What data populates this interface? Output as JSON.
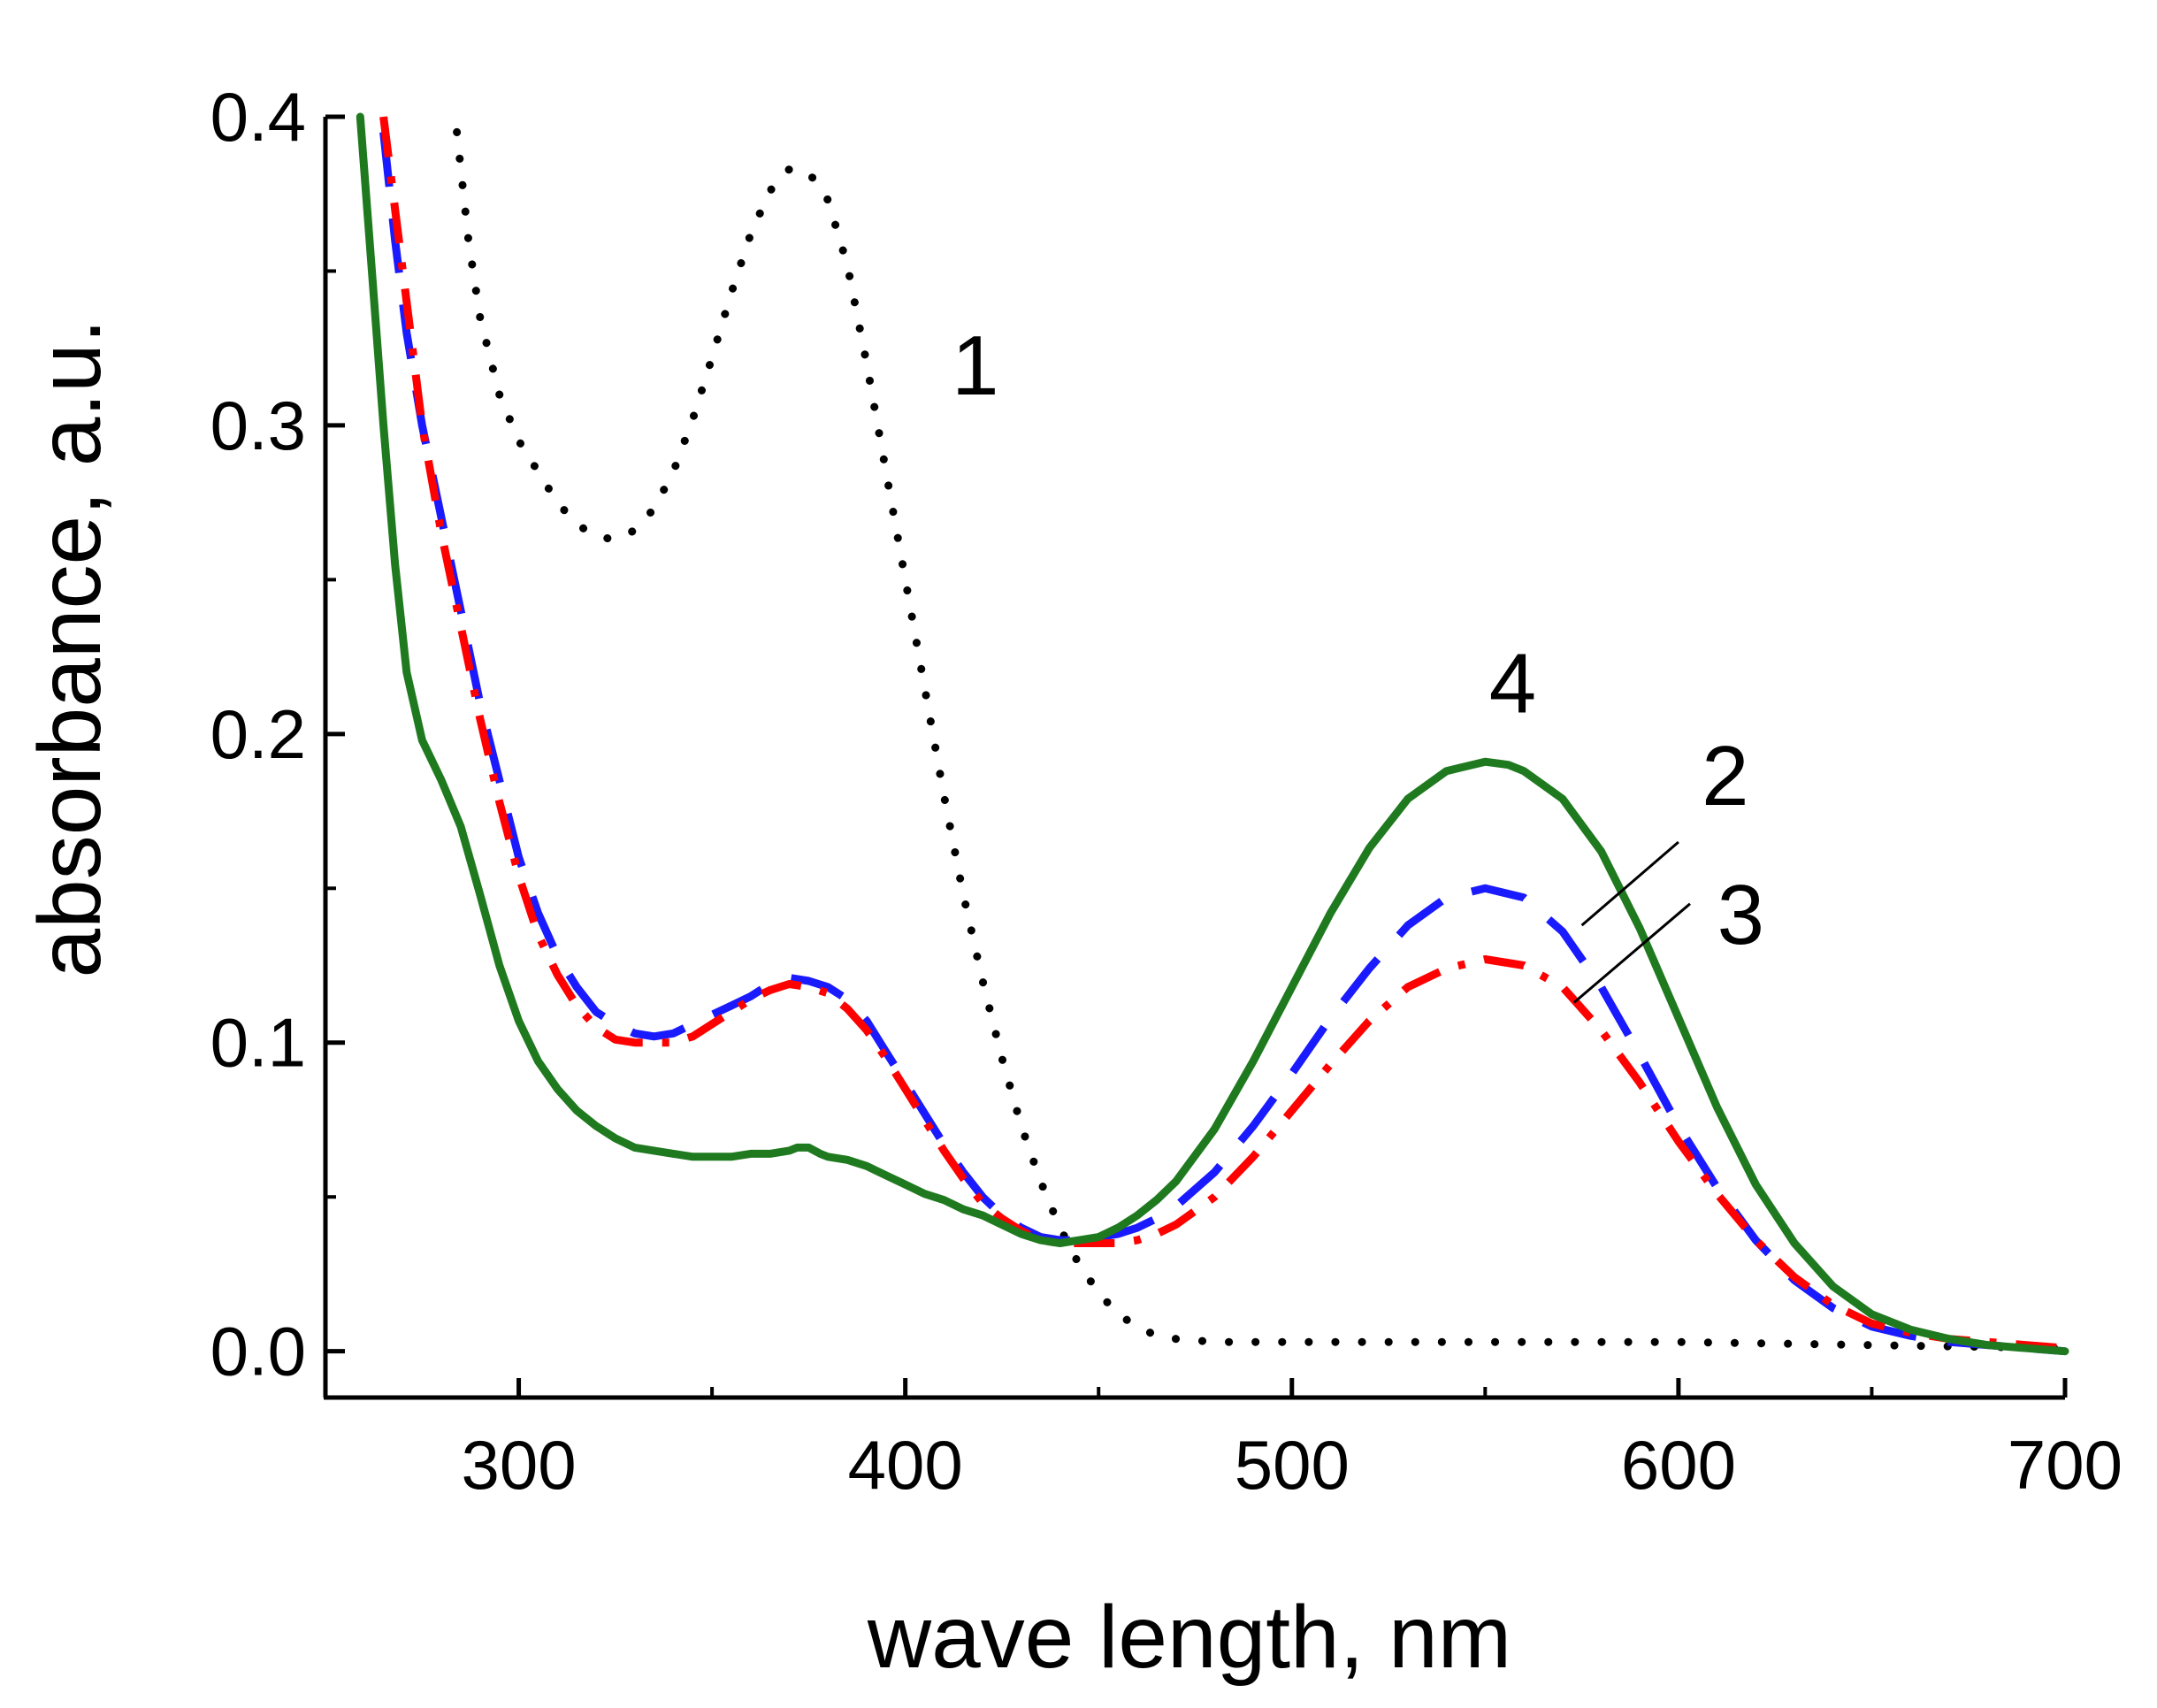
{
  "chart_data": {
    "type": "line",
    "title": "",
    "xlabel": "wave length, nm",
    "ylabel": "absorbance, a.u.",
    "xlim": [
      250,
      700
    ],
    "ylim": [
      -0.015,
      0.4
    ],
    "xticks": [
      300,
      400,
      500,
      600,
      700
    ],
    "xtick_labels": [
      "300",
      "400",
      "500",
      "600",
      "700"
    ],
    "xminor": [
      250,
      350,
      450,
      550,
      650
    ],
    "yticks": [
      0.0,
      0.1,
      0.2,
      0.3,
      0.4
    ],
    "ytick_labels": [
      "0.0",
      "0.1",
      "0.2",
      "0.3",
      "0.4"
    ],
    "yminor": [
      0.05,
      0.15,
      0.25,
      0.35
    ],
    "grid": false,
    "legend": "none",
    "series": [
      {
        "name": "1",
        "color": "#000000",
        "style": "dotted",
        "label_at": [
          412,
          0.31
        ],
        "x": [
          284,
          287,
          290,
          295,
          300,
          305,
          310,
          315,
          320,
          325,
          330,
          335,
          340,
          345,
          350,
          355,
          360,
          365,
          370,
          375,
          380,
          385,
          390,
          395,
          400,
          405,
          410,
          415,
          420,
          425,
          430,
          435,
          440,
          445,
          450,
          455,
          460,
          465,
          470,
          480,
          500,
          550,
          600,
          650,
          700
        ],
        "y": [
          0.395,
          0.36,
          0.335,
          0.31,
          0.295,
          0.285,
          0.275,
          0.268,
          0.264,
          0.263,
          0.266,
          0.273,
          0.285,
          0.302,
          0.322,
          0.343,
          0.362,
          0.376,
          0.383,
          0.382,
          0.373,
          0.352,
          0.32,
          0.285,
          0.25,
          0.215,
          0.18,
          0.148,
          0.12,
          0.095,
          0.073,
          0.055,
          0.04,
          0.028,
          0.019,
          0.012,
          0.008,
          0.005,
          0.004,
          0.003,
          0.003,
          0.003,
          0.003,
          0.002,
          0.001
        ]
      },
      {
        "name": "2",
        "color": "#1a1aff",
        "style": "dashed",
        "label_at": [
          606,
          0.177
        ],
        "leader": [
          [
            575,
            0.138
          ],
          [
            600,
            0.165
          ]
        ],
        "x": [
          265,
          268,
          271,
          275,
          280,
          285,
          290,
          295,
          300,
          305,
          310,
          315,
          320,
          325,
          330,
          335,
          340,
          345,
          350,
          355,
          360,
          365,
          370,
          375,
          380,
          385,
          390,
          395,
          400,
          405,
          410,
          415,
          420,
          425,
          430,
          435,
          440,
          445,
          450,
          455,
          460,
          465,
          470,
          480,
          490,
          500,
          510,
          520,
          530,
          540,
          550,
          560,
          570,
          580,
          590,
          600,
          610,
          620,
          630,
          640,
          650,
          660,
          670,
          680,
          690,
          700
        ],
        "y": [
          0.395,
          0.36,
          0.33,
          0.3,
          0.27,
          0.24,
          0.21,
          0.185,
          0.16,
          0.142,
          0.128,
          0.118,
          0.11,
          0.106,
          0.103,
          0.102,
          0.103,
          0.106,
          0.109,
          0.112,
          0.115,
          0.119,
          0.121,
          0.12,
          0.118,
          0.114,
          0.107,
          0.097,
          0.087,
          0.077,
          0.067,
          0.058,
          0.05,
          0.044,
          0.04,
          0.037,
          0.036,
          0.036,
          0.037,
          0.038,
          0.04,
          0.043,
          0.047,
          0.058,
          0.073,
          0.09,
          0.108,
          0.124,
          0.138,
          0.147,
          0.15,
          0.147,
          0.136,
          0.118,
          0.096,
          0.073,
          0.053,
          0.036,
          0.023,
          0.014,
          0.008,
          0.005,
          0.003,
          0.002,
          0.001,
          0.0
        ]
      },
      {
        "name": "3",
        "color": "#ff0000",
        "style": "dash-dot",
        "label_at": [
          610,
          0.132
        ],
        "leader": [
          [
            573,
            0.113
          ],
          [
            603,
            0.145
          ]
        ],
        "x": [
          265,
          268,
          271,
          275,
          280,
          285,
          290,
          295,
          300,
          305,
          310,
          315,
          320,
          325,
          330,
          335,
          340,
          345,
          350,
          355,
          360,
          365,
          370,
          375,
          380,
          385,
          390,
          395,
          400,
          405,
          410,
          415,
          420,
          425,
          430,
          435,
          440,
          445,
          450,
          455,
          460,
          465,
          470,
          480,
          490,
          500,
          510,
          520,
          530,
          540,
          550,
          560,
          570,
          580,
          590,
          600,
          610,
          620,
          630,
          640,
          650,
          660,
          670,
          680,
          690,
          700
        ],
        "y": [
          0.4,
          0.37,
          0.34,
          0.3,
          0.265,
          0.235,
          0.205,
          0.178,
          0.154,
          0.135,
          0.122,
          0.112,
          0.105,
          0.101,
          0.1,
          0.1,
          0.1,
          0.102,
          0.106,
          0.11,
          0.114,
          0.117,
          0.119,
          0.118,
          0.116,
          0.111,
          0.104,
          0.095,
          0.085,
          0.075,
          0.065,
          0.056,
          0.048,
          0.043,
          0.039,
          0.036,
          0.035,
          0.035,
          0.035,
          0.035,
          0.036,
          0.038,
          0.041,
          0.05,
          0.063,
          0.078,
          0.093,
          0.107,
          0.118,
          0.124,
          0.127,
          0.125,
          0.118,
          0.104,
          0.087,
          0.068,
          0.051,
          0.036,
          0.024,
          0.015,
          0.009,
          0.006,
          0.004,
          0.003,
          0.002,
          0.001
        ]
      },
      {
        "name": "4",
        "color": "#1f7a1f",
        "style": "solid",
        "label_at": [
          551,
          0.207
        ],
        "x": [
          259,
          262,
          265,
          268,
          271,
          275,
          280,
          285,
          290,
          295,
          300,
          305,
          310,
          315,
          320,
          325,
          330,
          335,
          340,
          345,
          350,
          355,
          360,
          365,
          370,
          372,
          375,
          378,
          380,
          385,
          390,
          395,
          400,
          405,
          410,
          415,
          420,
          425,
          430,
          435,
          440,
          445,
          450,
          455,
          460,
          465,
          470,
          480,
          490,
          500,
          510,
          520,
          530,
          540,
          550,
          556,
          560,
          570,
          580,
          590,
          600,
          610,
          620,
          630,
          640,
          650,
          660,
          670,
          680,
          690,
          700
        ],
        "y": [
          0.4,
          0.35,
          0.3,
          0.255,
          0.22,
          0.198,
          0.185,
          0.17,
          0.148,
          0.125,
          0.107,
          0.094,
          0.085,
          0.078,
          0.073,
          0.069,
          0.066,
          0.065,
          0.064,
          0.063,
          0.063,
          0.063,
          0.064,
          0.064,
          0.065,
          0.066,
          0.066,
          0.064,
          0.063,
          0.062,
          0.06,
          0.057,
          0.054,
          0.051,
          0.049,
          0.046,
          0.044,
          0.041,
          0.038,
          0.036,
          0.035,
          0.036,
          0.037,
          0.04,
          0.044,
          0.049,
          0.055,
          0.072,
          0.094,
          0.118,
          0.142,
          0.163,
          0.179,
          0.188,
          0.191,
          0.19,
          0.188,
          0.179,
          0.162,
          0.137,
          0.108,
          0.079,
          0.054,
          0.035,
          0.021,
          0.012,
          0.007,
          0.004,
          0.002,
          0.001,
          0.0
        ]
      }
    ]
  }
}
